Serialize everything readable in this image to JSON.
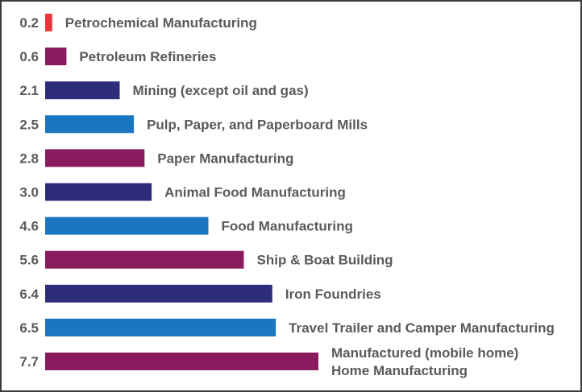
{
  "chart_data": {
    "type": "bar",
    "orientation": "horizontal",
    "title": "",
    "xlabel": "",
    "ylabel": "",
    "xlim": [
      0,
      7.7
    ],
    "grid": false,
    "legend": "none",
    "bars": [
      {
        "value": 0.2,
        "value_label": "0.2",
        "lines": [
          "Petrochemical Manufacturing"
        ],
        "color": "#e8383d"
      },
      {
        "value": 0.6,
        "value_label": "0.6",
        "lines": [
          "Petroleum Refineries"
        ],
        "color": "#8a1b5e"
      },
      {
        "value": 2.1,
        "value_label": "2.1",
        "lines": [
          "Mining (except oil and gas)"
        ],
        "color": "#2e2d7c"
      },
      {
        "value": 2.5,
        "value_label": "2.5",
        "lines": [
          "Pulp, Paper, and Paperboard Mills"
        ],
        "color": "#1a76c0"
      },
      {
        "value": 2.8,
        "value_label": "2.8",
        "lines": [
          "Paper Manufacturing"
        ],
        "color": "#8a1b5e"
      },
      {
        "value": 3.0,
        "value_label": "3.0",
        "lines": [
          "Animal Food Manufacturing"
        ],
        "color": "#2e2d7c"
      },
      {
        "value": 4.6,
        "value_label": "4.6",
        "lines": [
          "Food Manufacturing"
        ],
        "color": "#1a76c0"
      },
      {
        "value": 5.6,
        "value_label": "5.6",
        "lines": [
          "Ship & Boat Building"
        ],
        "color": "#8a1b5e"
      },
      {
        "value": 6.4,
        "value_label": "6.4",
        "lines": [
          "Iron Foundries"
        ],
        "color": "#2e2d7c"
      },
      {
        "value": 6.5,
        "value_label": "6.5",
        "lines": [
          "Travel Trailer and Camper Manufacturing"
        ],
        "color": "#1a76c0"
      },
      {
        "value": 7.7,
        "value_label": "7.7",
        "lines": [
          "Manufactured (mobile home)",
          "Home Manufacturing"
        ],
        "color": "#8a1b5e"
      }
    ]
  }
}
